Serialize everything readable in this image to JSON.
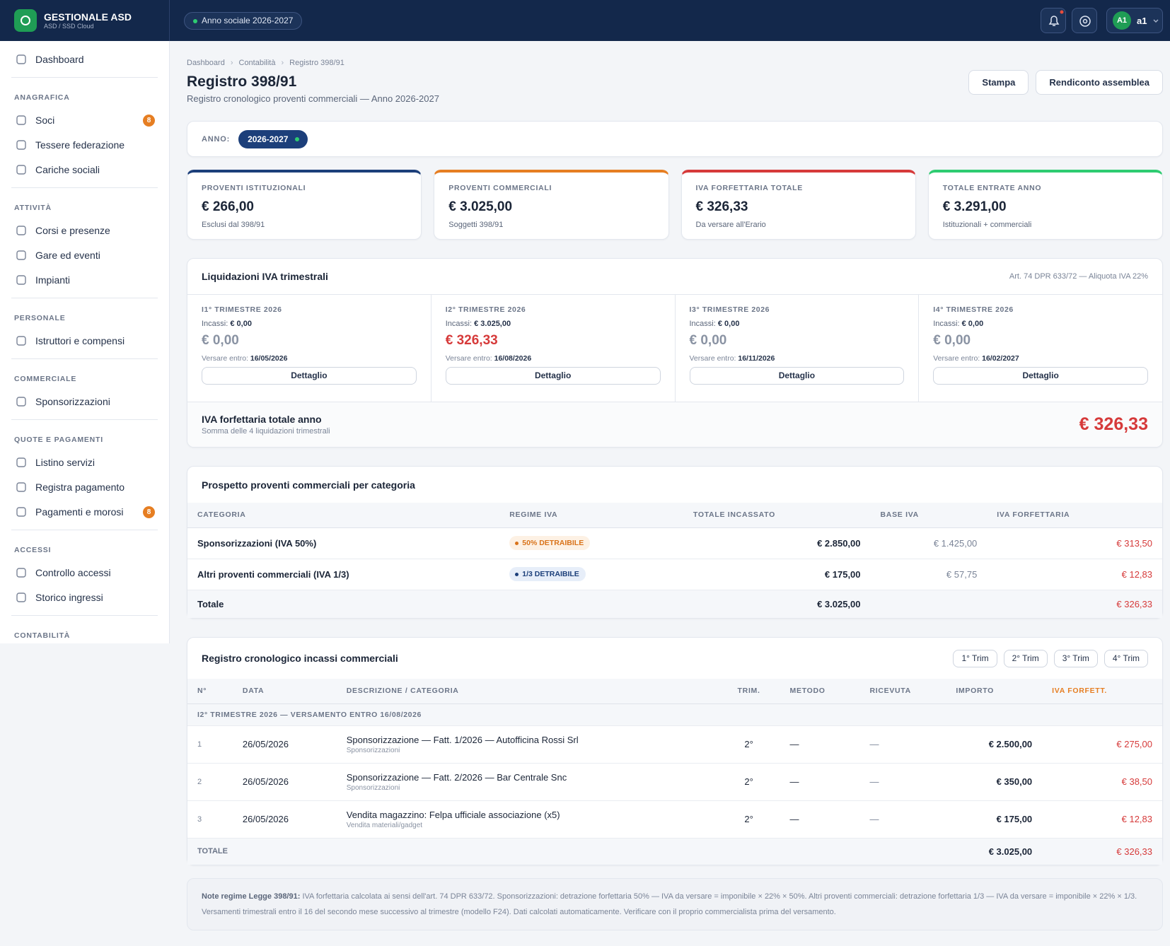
{
  "header": {
    "brand": "GESTIONALE ASD",
    "brand_sub": "ASD / SSD Cloud",
    "season": "Anno sociale 2026-2027",
    "avatar": "A1",
    "user": "a1"
  },
  "sidebar": {
    "dashboard": "Dashboard",
    "sections": [
      {
        "title": "ANAGRAFICA",
        "items": [
          {
            "label": "Soci",
            "badge": "8"
          },
          {
            "label": "Tessere federazione"
          },
          {
            "label": "Cariche sociali"
          }
        ]
      },
      {
        "title": "ATTIVITÀ",
        "items": [
          {
            "label": "Corsi e presenze"
          },
          {
            "label": "Gare ed eventi"
          },
          {
            "label": "Impianti"
          }
        ]
      },
      {
        "title": "PERSONALE",
        "items": [
          {
            "label": "Istruttori e compensi"
          }
        ]
      },
      {
        "title": "COMMERCIALE",
        "items": [
          {
            "label": "Sponsorizzazioni"
          }
        ]
      },
      {
        "title": "QUOTE E PAGAMENTI",
        "items": [
          {
            "label": "Listino servizi"
          },
          {
            "label": "Registra pagamento"
          },
          {
            "label": "Pagamenti e morosi",
            "badge": "8"
          }
        ]
      },
      {
        "title": "ACCESSI",
        "items": [
          {
            "label": "Controllo accessi"
          },
          {
            "label": "Storico ingressi"
          }
        ]
      },
      {
        "title": "CONTABILITÀ",
        "items": []
      }
    ]
  },
  "page": {
    "breadcrumb": [
      "Dashboard",
      "Contabilità",
      "Registro 398/91"
    ],
    "title": "Registro 398/91",
    "subtitle": "Registro cronologico proventi commerciali — Anno 2026-2027",
    "actions": [
      "Stampa",
      "Rendiconto assemblea"
    ]
  },
  "year_filter": {
    "label": "ANNO:",
    "value": "2026-2027"
  },
  "kpis": [
    {
      "label": "PROVENTI ISTITUZIONALI",
      "value": "€ 266,00",
      "note": "Esclusi dal 398/91"
    },
    {
      "label": "PROVENTI COMMERCIALI",
      "value": "€ 3.025,00",
      "note": "Soggetti 398/91"
    },
    {
      "label": "IVA FORFETTARIA TOTALE",
      "value": "€ 326,33",
      "note": "Da versare all'Erario"
    },
    {
      "label": "TOTALE ENTRATE ANNO",
      "value": "€ 3.291,00",
      "note": "Istituzionali + commerciali"
    }
  ],
  "quarterly": {
    "title": "Liquidazioni IVA trimestrali",
    "note": "Art. 74 DPR 633/72 — Aliquota IVA 22%",
    "quarters": [
      {
        "title": "I1° TRIMESTRE 2026",
        "incassi_label": "Incassi:",
        "incassi": "€ 0,00",
        "amount": "€ 0,00",
        "due_label": "Versare entro:",
        "due": "16/05/2026",
        "button": "Dettaglio"
      },
      {
        "title": "I2° TRIMESTRE 2026",
        "incassi_label": "Incassi:",
        "incassi": "€ 3.025,00",
        "amount": "€ 326,33",
        "due_label": "Versare entro:",
        "due": "16/08/2026",
        "button": "Dettaglio"
      },
      {
        "title": "I3° TRIMESTRE 2026",
        "incassi_label": "Incassi:",
        "incassi": "€ 0,00",
        "amount": "€ 0,00",
        "due_label": "Versare entro:",
        "due": "16/11/2026",
        "button": "Dettaglio"
      },
      {
        "title": "I4° TRIMESTRE 2026",
        "incassi_label": "Incassi:",
        "incassi": "€ 0,00",
        "amount": "€ 0,00",
        "due_label": "Versare entro:",
        "due": "16/02/2027",
        "button": "Dettaglio"
      }
    ],
    "total_label": "IVA forfettaria totale anno",
    "total_note": "Somma delle 4 liquidazioni trimestrali",
    "total": "€ 326,33"
  },
  "categories": {
    "title": "Prospetto proventi commerciali per categoria",
    "columns": [
      "CATEGORIA",
      "REGIME IVA",
      "TOTALE INCASSATO",
      "BASE IVA",
      "IVA FORFETTARIA"
    ],
    "rows": [
      [
        "Sponsorizzazioni (IVA 50%)",
        "50% DETRAIBILE",
        "€ 2.850,00",
        "€ 1.425,00",
        "€ 313,50"
      ],
      [
        "Altri proventi commerciali (IVA 1/3)",
        "1/3 DETRAIBILE",
        "€ 175,00",
        "€ 57,75",
        "€ 12,83"
      ]
    ],
    "total_label": "Totale",
    "total_amount": "€ 3.025,00",
    "total_vat": "€ 326,33"
  },
  "register": {
    "title": "Registro cronologico incassi commerciali",
    "filters": [
      "1° Trim",
      "2° Trim",
      "3° Trim",
      "4° Trim"
    ],
    "columns": [
      "N°",
      "DATA",
      "DESCRIZIONE / CATEGORIA",
      "TRIM.",
      "METODO",
      "RICEVUTA",
      "IMPORTO",
      "IVA FORFETT."
    ],
    "group": "I2° TRIMESTRE 2026 — VERSAMENTO ENTRO 16/08/2026",
    "rows": [
      {
        "n": "1",
        "date": "26/05/2026",
        "description": "Sponsorizzazione — Fatt. 1/2026 — Autofficina Rossi Srl",
        "category": "Sponsorizzazioni",
        "quarter": "2°",
        "method": "—",
        "receipt": "—",
        "amount": "€ 2.500,00",
        "vat": "€ 275,00"
      },
      {
        "n": "2",
        "date": "26/05/2026",
        "description": "Sponsorizzazione — Fatt. 2/2026 — Bar Centrale Snc",
        "category": "Sponsorizzazioni",
        "quarter": "2°",
        "method": "—",
        "receipt": "—",
        "amount": "€ 350,00",
        "vat": "€ 38,50"
      },
      {
        "n": "3",
        "date": "26/05/2026",
        "description": "Vendita magazzino: Felpa ufficiale associazione (x5)",
        "category": "Vendita materiali/gadget",
        "quarter": "2°",
        "method": "—",
        "receipt": "—",
        "amount": "€ 175,00",
        "vat": "€ 12,83"
      }
    ],
    "total_label": "TOTALE",
    "total_amount": "€ 3.025,00",
    "total_vat": "€ 326,33"
  },
  "note": {
    "label": "Note regime Legge 398/91:",
    "text": "IVA forfettaria calcolata ai sensi dell'art. 74 DPR 633/72. Sponsorizzazioni: detrazione forfettaria 50% — IVA da versare = imponibile × 22% × 50%. Altri proventi commerciali: detrazione forfettaria 1/3 — IVA da versare = imponibile × 22% × 1/3. Versamenti trimestrali entro il 16 del secondo mese successivo al trimestre (modello F24). Dati calcolati automaticamente. Verificare con il proprio commercialista prima del versamento."
  }
}
